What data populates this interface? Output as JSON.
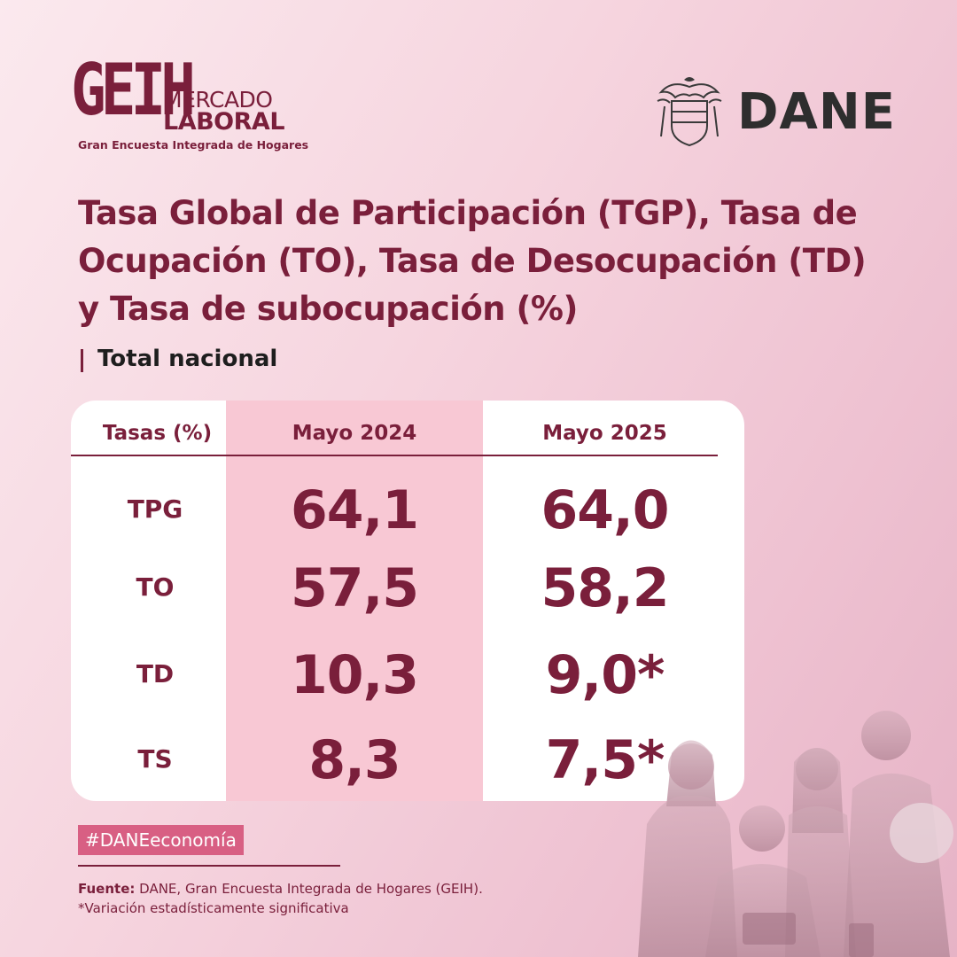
{
  "brand": {
    "geih_mark": "GEIH",
    "geih_word1": "MERCADO",
    "geih_word2": "LABORAL",
    "geih_sub": "Gran Encuesta Integrada de Hogares",
    "dane": "DANE"
  },
  "title": "Tasa Global de Participación (TGP), Tasa de Ocupación (TO), Tasa de Desocupación (TD) y Tasa de subocupación (%)",
  "subtitle": "Total nacional",
  "chart_data": {
    "type": "table",
    "title": "Tasa Global de Participación (TGP), Tasa de Ocupación (TO), Tasa de Desocupación (TD) y Tasa de subocupación (%)",
    "subtitle": "Total nacional",
    "columns": [
      "Tasas (%)",
      "Mayo 2024",
      "Mayo 2025"
    ],
    "rows": [
      {
        "label": "TPG",
        "mayo_2024": "64,1",
        "mayo_2025": "64,0"
      },
      {
        "label": "TO",
        "mayo_2024": "57,5",
        "mayo_2025": "58,2"
      },
      {
        "label": "TD",
        "mayo_2024": "10,3",
        "mayo_2025": "9,0*"
      },
      {
        "label": "TS",
        "mayo_2024": "8,3",
        "mayo_2025": "7,5*"
      }
    ]
  },
  "hashtag": "#DANEeconomía",
  "source_label": "Fuente:",
  "source_text": "DANE, Gran Encuesta Integrada de Hogares (GEIH).",
  "note": "*Variación estadísticamente significativa",
  "colors": {
    "primary": "#7a1f3b",
    "highlight_column": "#f8c8d4",
    "hashtag_bg": "#d85f83",
    "background": "#f3cfdb"
  }
}
